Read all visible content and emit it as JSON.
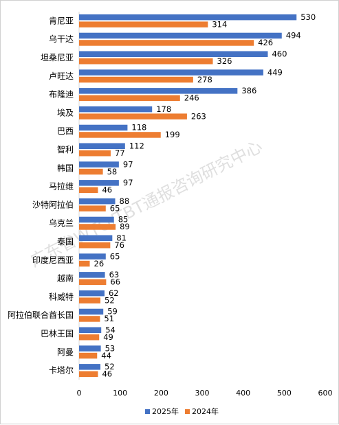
{
  "chart_data": {
    "type": "bar",
    "orientation": "horizontal",
    "categories": [
      "肯尼亚",
      "乌干达",
      "坦桑尼亚",
      "卢旺达",
      "布隆迪",
      "埃及",
      "巴西",
      "智利",
      "韩国",
      "马拉维",
      "沙特阿拉伯",
      "乌克兰",
      "泰国",
      "印度尼西亚",
      "越南",
      "科威特",
      "阿拉伯联合酋长国",
      "巴林王国",
      "阿曼",
      "卡塔尔"
    ],
    "series": [
      {
        "name": "2025年",
        "color": "#4472c4",
        "values": [
          530,
          494,
          460,
          449,
          386,
          178,
          118,
          112,
          97,
          97,
          88,
          85,
          81,
          65,
          63,
          62,
          59,
          54,
          53,
          52
        ]
      },
      {
        "name": "2024年",
        "color": "#ed7d31",
        "values": [
          314,
          426,
          326,
          278,
          246,
          263,
          199,
          77,
          58,
          46,
          65,
          89,
          76,
          26,
          66,
          52,
          51,
          49,
          44,
          46
        ]
      }
    ],
    "xlim": [
      0,
      600
    ],
    "xticks": [
      "0",
      "100",
      "200",
      "300",
      "400",
      "500",
      "600"
    ],
    "grid": false,
    "legend_position": "bottom",
    "watermark": "广东省WTO/TBT通报咨询研究中心"
  }
}
